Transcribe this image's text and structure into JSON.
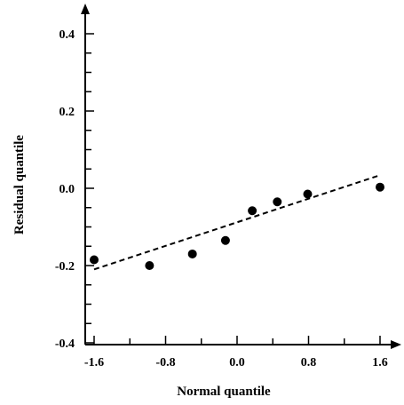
{
  "chart_data": {
    "type": "scatter",
    "title": "",
    "xlabel": "Normal quantile",
    "ylabel": "Residual quantile",
    "xlim": [
      -1.6,
      1.6
    ],
    "ylim": [
      -0.4,
      0.4
    ],
    "x_ticks": [
      "-1.6",
      "-0.8",
      "0.0",
      "0.8",
      "1.6"
    ],
    "y_ticks": [
      "0.4",
      "0.2",
      "0.0",
      "-0.2",
      "-0.4"
    ],
    "grid": false,
    "series": [
      {
        "points": [
          {
            "x": -1.6,
            "y": -0.185
          },
          {
            "x": -0.98,
            "y": -0.2
          },
          {
            "x": -0.5,
            "y": -0.17
          },
          {
            "x": -0.13,
            "y": -0.135
          },
          {
            "x": 0.17,
            "y": -0.058
          },
          {
            "x": 0.45,
            "y": -0.035
          },
          {
            "x": 0.79,
            "y": -0.015
          },
          {
            "x": 1.6,
            "y": 0.003
          }
        ]
      }
    ],
    "fit_line": {
      "style": "dashed",
      "points": [
        {
          "x": -1.6,
          "y": -0.21
        },
        {
          "x": 1.6,
          "y": 0.034
        }
      ]
    }
  }
}
